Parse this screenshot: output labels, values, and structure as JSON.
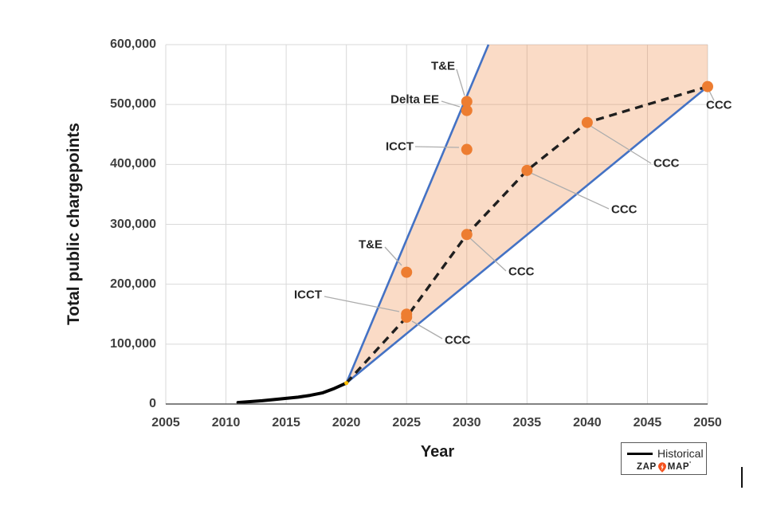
{
  "chart_data": {
    "type": "line",
    "title": "",
    "xlabel": "Year",
    "ylabel": "Total public chargepoints",
    "xlim": [
      2005,
      2050
    ],
    "ylim": [
      0,
      600000
    ],
    "grid": true,
    "x_ticks": [
      {
        "v": 2005,
        "label": "2005"
      },
      {
        "v": 2010,
        "label": "2010"
      },
      {
        "v": 2015,
        "label": "2015"
      },
      {
        "v": 2020,
        "label": "2020"
      },
      {
        "v": 2025,
        "label": "2025"
      },
      {
        "v": 2030,
        "label": "2030"
      },
      {
        "v": 2035,
        "label": "2035"
      },
      {
        "v": 2040,
        "label": "2040"
      },
      {
        "v": 2045,
        "label": "2045"
      },
      {
        "v": 2050,
        "label": "2050"
      }
    ],
    "y_ticks": [
      {
        "v": 0,
        "label": "0"
      },
      {
        "v": 100000,
        "label": "100,000"
      },
      {
        "v": 200000,
        "label": "200,000"
      },
      {
        "v": 300000,
        "label": "300,000"
      },
      {
        "v": 400000,
        "label": "400,000"
      },
      {
        "v": 500000,
        "label": "500,000"
      },
      {
        "v": 600000,
        "label": "600,000"
      }
    ],
    "series": [
      {
        "name": "Historical",
        "type": "line",
        "x": [
          2011,
          2012,
          2013,
          2014,
          2015,
          2016,
          2017,
          2018,
          2019,
          2020
        ],
        "y": [
          2500,
          4000,
          5500,
          7500,
          9500,
          11500,
          14500,
          18500,
          26000,
          35000
        ]
      },
      {
        "name": "CCC pathway (dashed)",
        "type": "dashed-line",
        "x": [
          2020,
          2025,
          2030,
          2035,
          2040,
          2050
        ],
        "y": [
          35000,
          145000,
          283000,
          390000,
          470000,
          530000
        ]
      }
    ],
    "fan": {
      "vertex": {
        "year": 2020,
        "value": 35000
      },
      "upper_line_end": {
        "year": 2031.8,
        "value": 600000
      },
      "lower_line_end": {
        "year": 2050,
        "value": 530000
      }
    },
    "scenario_annotations": [
      {
        "label": "T&E",
        "year": 2030,
        "value": 505000
      },
      {
        "label": "Delta EE",
        "year": 2030,
        "value": 490000
      },
      {
        "label": "ICCT",
        "year": 2030,
        "value": 425000
      },
      {
        "label": "T&E",
        "year": 2025,
        "value": 220000
      },
      {
        "label": "ICCT",
        "year": 2025,
        "value": 150000
      },
      {
        "label": "CCC",
        "year": 2025,
        "value": 145000
      },
      {
        "label": "CCC",
        "year": 2030,
        "value": 283000
      },
      {
        "label": "CCC",
        "year": 2035,
        "value": 390000
      },
      {
        "label": "CCC",
        "year": 2040,
        "value": 470000
      },
      {
        "label": "CCC",
        "year": 2050,
        "value": 530000
      }
    ],
    "legend_position": "bottom-right"
  },
  "legend": {
    "historical_label": "Historical"
  },
  "logo": {
    "zap": "ZAP",
    "map": "MAP",
    "tm": "'"
  },
  "colors": {
    "accent_blue": "#4472C4",
    "accent_orange": "#ED7D31",
    "fan_shade": "rgba(237,125,49,0.28)",
    "historical_line": "#000000",
    "pathway_line": "#1f1f1f",
    "grid": "#D9D9D9",
    "axis": "#595959",
    "leader": "#ADADAD",
    "vertex_dot": "#FFC000",
    "pin_orange": "#F4511E"
  }
}
